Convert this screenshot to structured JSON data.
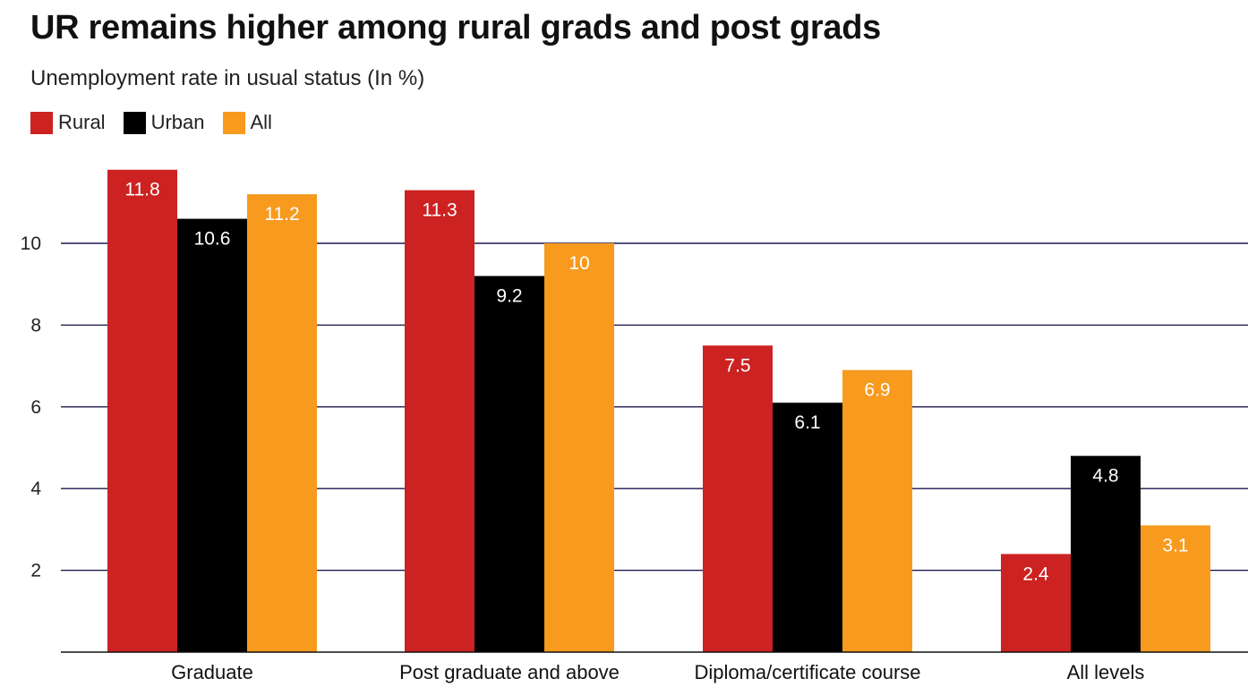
{
  "chart_data": {
    "type": "bar",
    "title": "UR remains higher among rural grads and post grads",
    "subtitle": "Unemployment rate in usual status (In %)",
    "xlabel": "",
    "ylabel": "",
    "categories": [
      "Graduate",
      "Post graduate and above",
      "Diploma/certificate course",
      "All levels"
    ],
    "series": [
      {
        "name": "Rural",
        "color": "#cc2222",
        "values": [
          11.8,
          11.3,
          7.5,
          2.4
        ]
      },
      {
        "name": "Urban",
        "color": "#000000",
        "values": [
          10.6,
          9.2,
          6.1,
          4.8
        ]
      },
      {
        "name": "All",
        "color": "#f79a1e",
        "values": [
          11.2,
          10,
          6.9,
          3.1
        ]
      }
    ],
    "yticks": [
      2,
      4,
      6,
      8,
      10
    ],
    "ylim": [
      0,
      12
    ],
    "grid": true,
    "legend_position": "top-left",
    "gridline_color": "#1a1a4e"
  }
}
